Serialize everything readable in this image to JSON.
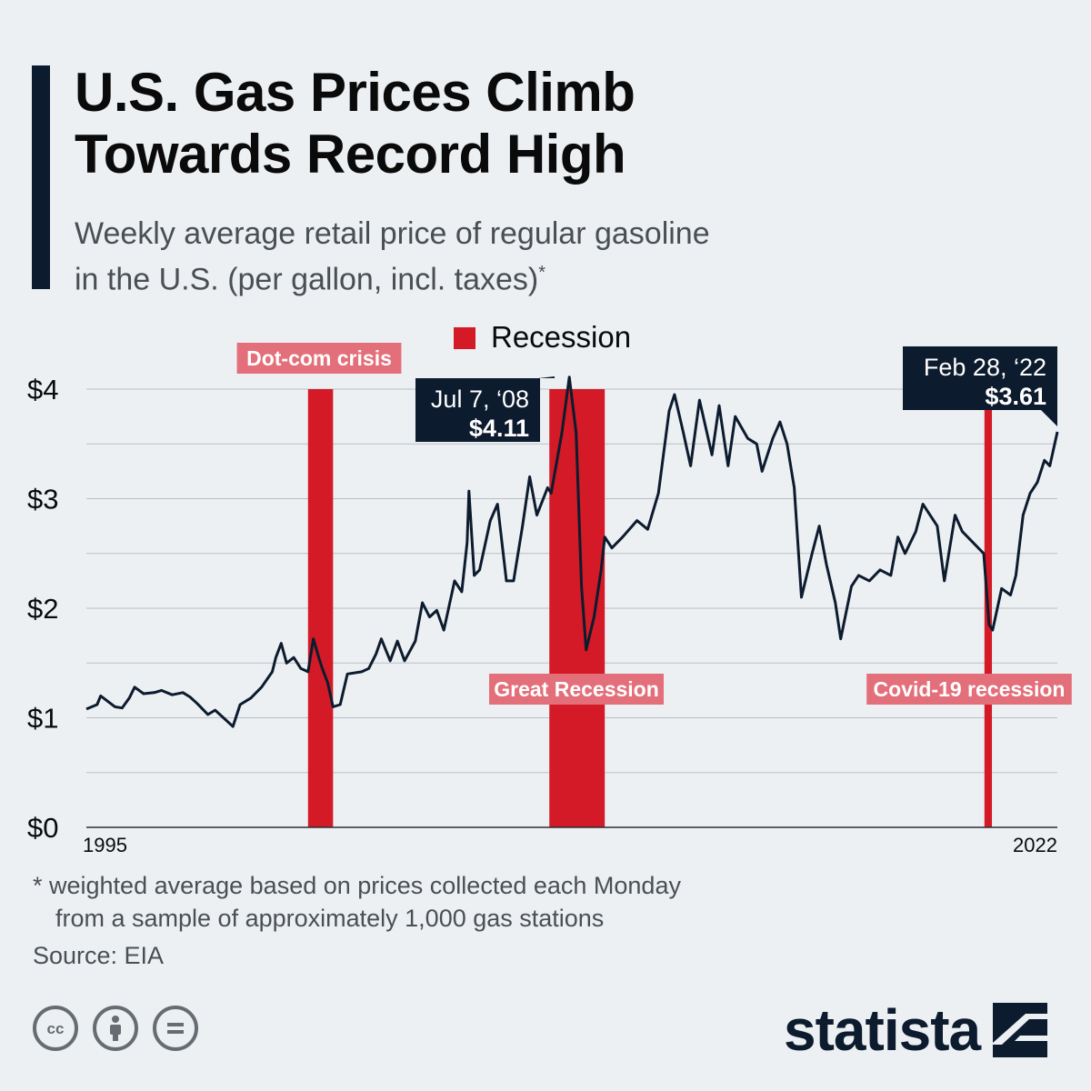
{
  "header": {
    "title_line1": "U.S. Gas Prices Climb",
    "title_line2": "Towards Record High",
    "subtitle_line1": "Weekly average retail price of regular gasoline",
    "subtitle_line2": "in the U.S. (per gallon, incl. taxes)",
    "subtitle_mark": "*"
  },
  "footer": {
    "footnote_line1": "* weighted average based on prices collected each Monday",
    "footnote_line2": "from a sample of approximately 1,000 gas stations",
    "source": "Source: EIA",
    "logo": "statista",
    "license_icons": [
      "cc-icon",
      "attribution-icon",
      "no-derivatives-icon"
    ]
  },
  "colors": {
    "line": "#0d1b2e",
    "recession": "#d31a26",
    "recession_label_bg": "#e36f7a",
    "callout_bg": "#0d1b2e",
    "grid": "#b9bfc5",
    "background": "#ecf0f3"
  },
  "chart_data": {
    "type": "line",
    "title": "U.S. Gas Prices Climb Towards Record High",
    "ylim": [
      0,
      4
    ],
    "y_ticks": [
      {
        "value": 0,
        "label": "$0"
      },
      {
        "value": 1,
        "label": "$1"
      },
      {
        "value": 2,
        "label": "$2"
      },
      {
        "value": 3,
        "label": "$3"
      },
      {
        "value": 4,
        "label": "$4"
      }
    ],
    "xlim": [
      1995.0,
      2022.16
    ],
    "x_tick_labels": [
      {
        "value": 1995.0,
        "label": "1995"
      },
      {
        "value": 2022.16,
        "label": "2022"
      }
    ],
    "legend": {
      "label": "Recession",
      "position": "top"
    },
    "recessions": [
      {
        "name": "Dot-com crisis",
        "start": 2001.2,
        "end": 2001.9
      },
      {
        "name": "Great Recession",
        "start": 2007.95,
        "end": 2009.5
      },
      {
        "name": "Covid-19 recession",
        "start": 2020.12,
        "end": 2020.33
      }
    ],
    "annotations": [
      {
        "date_label": "Jul 7, ‘08",
        "value_label": "$4.11",
        "x": 2008.51,
        "y": 4.11
      },
      {
        "date_label": "Feb 28, ‘22",
        "value_label": "$3.61",
        "x": 2022.16,
        "y": 3.61
      }
    ],
    "series": [
      {
        "points": [
          [
            1995.0,
            1.08
          ],
          [
            1995.3,
            1.12
          ],
          [
            1995.4,
            1.2
          ],
          [
            1995.6,
            1.15
          ],
          [
            1995.8,
            1.1
          ],
          [
            1996.0,
            1.09
          ],
          [
            1996.2,
            1.18
          ],
          [
            1996.35,
            1.28
          ],
          [
            1996.6,
            1.22
          ],
          [
            1996.9,
            1.23
          ],
          [
            1997.1,
            1.25
          ],
          [
            1997.4,
            1.21
          ],
          [
            1997.7,
            1.23
          ],
          [
            1997.9,
            1.19
          ],
          [
            1998.1,
            1.13
          ],
          [
            1998.4,
            1.03
          ],
          [
            1998.6,
            1.07
          ],
          [
            1998.9,
            0.98
          ],
          [
            1999.1,
            0.92
          ],
          [
            1999.3,
            1.12
          ],
          [
            1999.6,
            1.18
          ],
          [
            1999.9,
            1.28
          ],
          [
            2000.2,
            1.42
          ],
          [
            2000.3,
            1.55
          ],
          [
            2000.45,
            1.68
          ],
          [
            2000.6,
            1.5
          ],
          [
            2000.8,
            1.55
          ],
          [
            2001.0,
            1.45
          ],
          [
            2001.2,
            1.42
          ],
          [
            2001.35,
            1.72
          ],
          [
            2001.5,
            1.55
          ],
          [
            2001.6,
            1.45
          ],
          [
            2001.75,
            1.32
          ],
          [
            2001.9,
            1.1
          ],
          [
            2002.1,
            1.12
          ],
          [
            2002.3,
            1.4
          ],
          [
            2002.7,
            1.42
          ],
          [
            2002.9,
            1.45
          ],
          [
            2003.1,
            1.58
          ],
          [
            2003.25,
            1.72
          ],
          [
            2003.5,
            1.52
          ],
          [
            2003.7,
            1.7
          ],
          [
            2003.9,
            1.52
          ],
          [
            2004.2,
            1.7
          ],
          [
            2004.4,
            2.05
          ],
          [
            2004.6,
            1.92
          ],
          [
            2004.8,
            1.98
          ],
          [
            2005.0,
            1.8
          ],
          [
            2005.3,
            2.25
          ],
          [
            2005.5,
            2.15
          ],
          [
            2005.65,
            2.6
          ],
          [
            2005.7,
            3.07
          ],
          [
            2005.85,
            2.3
          ],
          [
            2006.0,
            2.35
          ],
          [
            2006.3,
            2.8
          ],
          [
            2006.5,
            2.95
          ],
          [
            2006.75,
            2.25
          ],
          [
            2006.95,
            2.25
          ],
          [
            2007.2,
            2.75
          ],
          [
            2007.4,
            3.2
          ],
          [
            2007.6,
            2.85
          ],
          [
            2007.9,
            3.1
          ],
          [
            2008.0,
            3.05
          ],
          [
            2008.3,
            3.6
          ],
          [
            2008.51,
            4.11
          ],
          [
            2008.7,
            3.6
          ],
          [
            2008.85,
            2.2
          ],
          [
            2008.98,
            1.62
          ],
          [
            2009.2,
            1.92
          ],
          [
            2009.4,
            2.35
          ],
          [
            2009.5,
            2.65
          ],
          [
            2009.7,
            2.55
          ],
          [
            2010.0,
            2.65
          ],
          [
            2010.4,
            2.8
          ],
          [
            2010.7,
            2.72
          ],
          [
            2011.0,
            3.05
          ],
          [
            2011.3,
            3.8
          ],
          [
            2011.45,
            3.95
          ],
          [
            2011.7,
            3.6
          ],
          [
            2011.9,
            3.3
          ],
          [
            2012.15,
            3.9
          ],
          [
            2012.5,
            3.4
          ],
          [
            2012.7,
            3.85
          ],
          [
            2012.95,
            3.3
          ],
          [
            2013.15,
            3.75
          ],
          [
            2013.5,
            3.55
          ],
          [
            2013.75,
            3.5
          ],
          [
            2013.9,
            3.25
          ],
          [
            2014.2,
            3.55
          ],
          [
            2014.4,
            3.7
          ],
          [
            2014.6,
            3.5
          ],
          [
            2014.8,
            3.1
          ],
          [
            2015.0,
            2.1
          ],
          [
            2015.3,
            2.5
          ],
          [
            2015.5,
            2.75
          ],
          [
            2015.7,
            2.4
          ],
          [
            2015.95,
            2.05
          ],
          [
            2016.1,
            1.72
          ],
          [
            2016.4,
            2.2
          ],
          [
            2016.6,
            2.3
          ],
          [
            2016.9,
            2.25
          ],
          [
            2017.2,
            2.35
          ],
          [
            2017.5,
            2.3
          ],
          [
            2017.7,
            2.65
          ],
          [
            2017.9,
            2.5
          ],
          [
            2018.2,
            2.7
          ],
          [
            2018.4,
            2.95
          ],
          [
            2018.6,
            2.85
          ],
          [
            2018.8,
            2.75
          ],
          [
            2019.0,
            2.25
          ],
          [
            2019.3,
            2.85
          ],
          [
            2019.5,
            2.7
          ],
          [
            2019.8,
            2.6
          ],
          [
            2020.1,
            2.5
          ],
          [
            2020.25,
            1.85
          ],
          [
            2020.35,
            1.8
          ],
          [
            2020.6,
            2.18
          ],
          [
            2020.85,
            2.12
          ],
          [
            2021.0,
            2.3
          ],
          [
            2021.2,
            2.85
          ],
          [
            2021.4,
            3.05
          ],
          [
            2021.6,
            3.15
          ],
          [
            2021.8,
            3.35
          ],
          [
            2021.95,
            3.3
          ],
          [
            2022.16,
            3.61
          ]
        ]
      }
    ]
  }
}
